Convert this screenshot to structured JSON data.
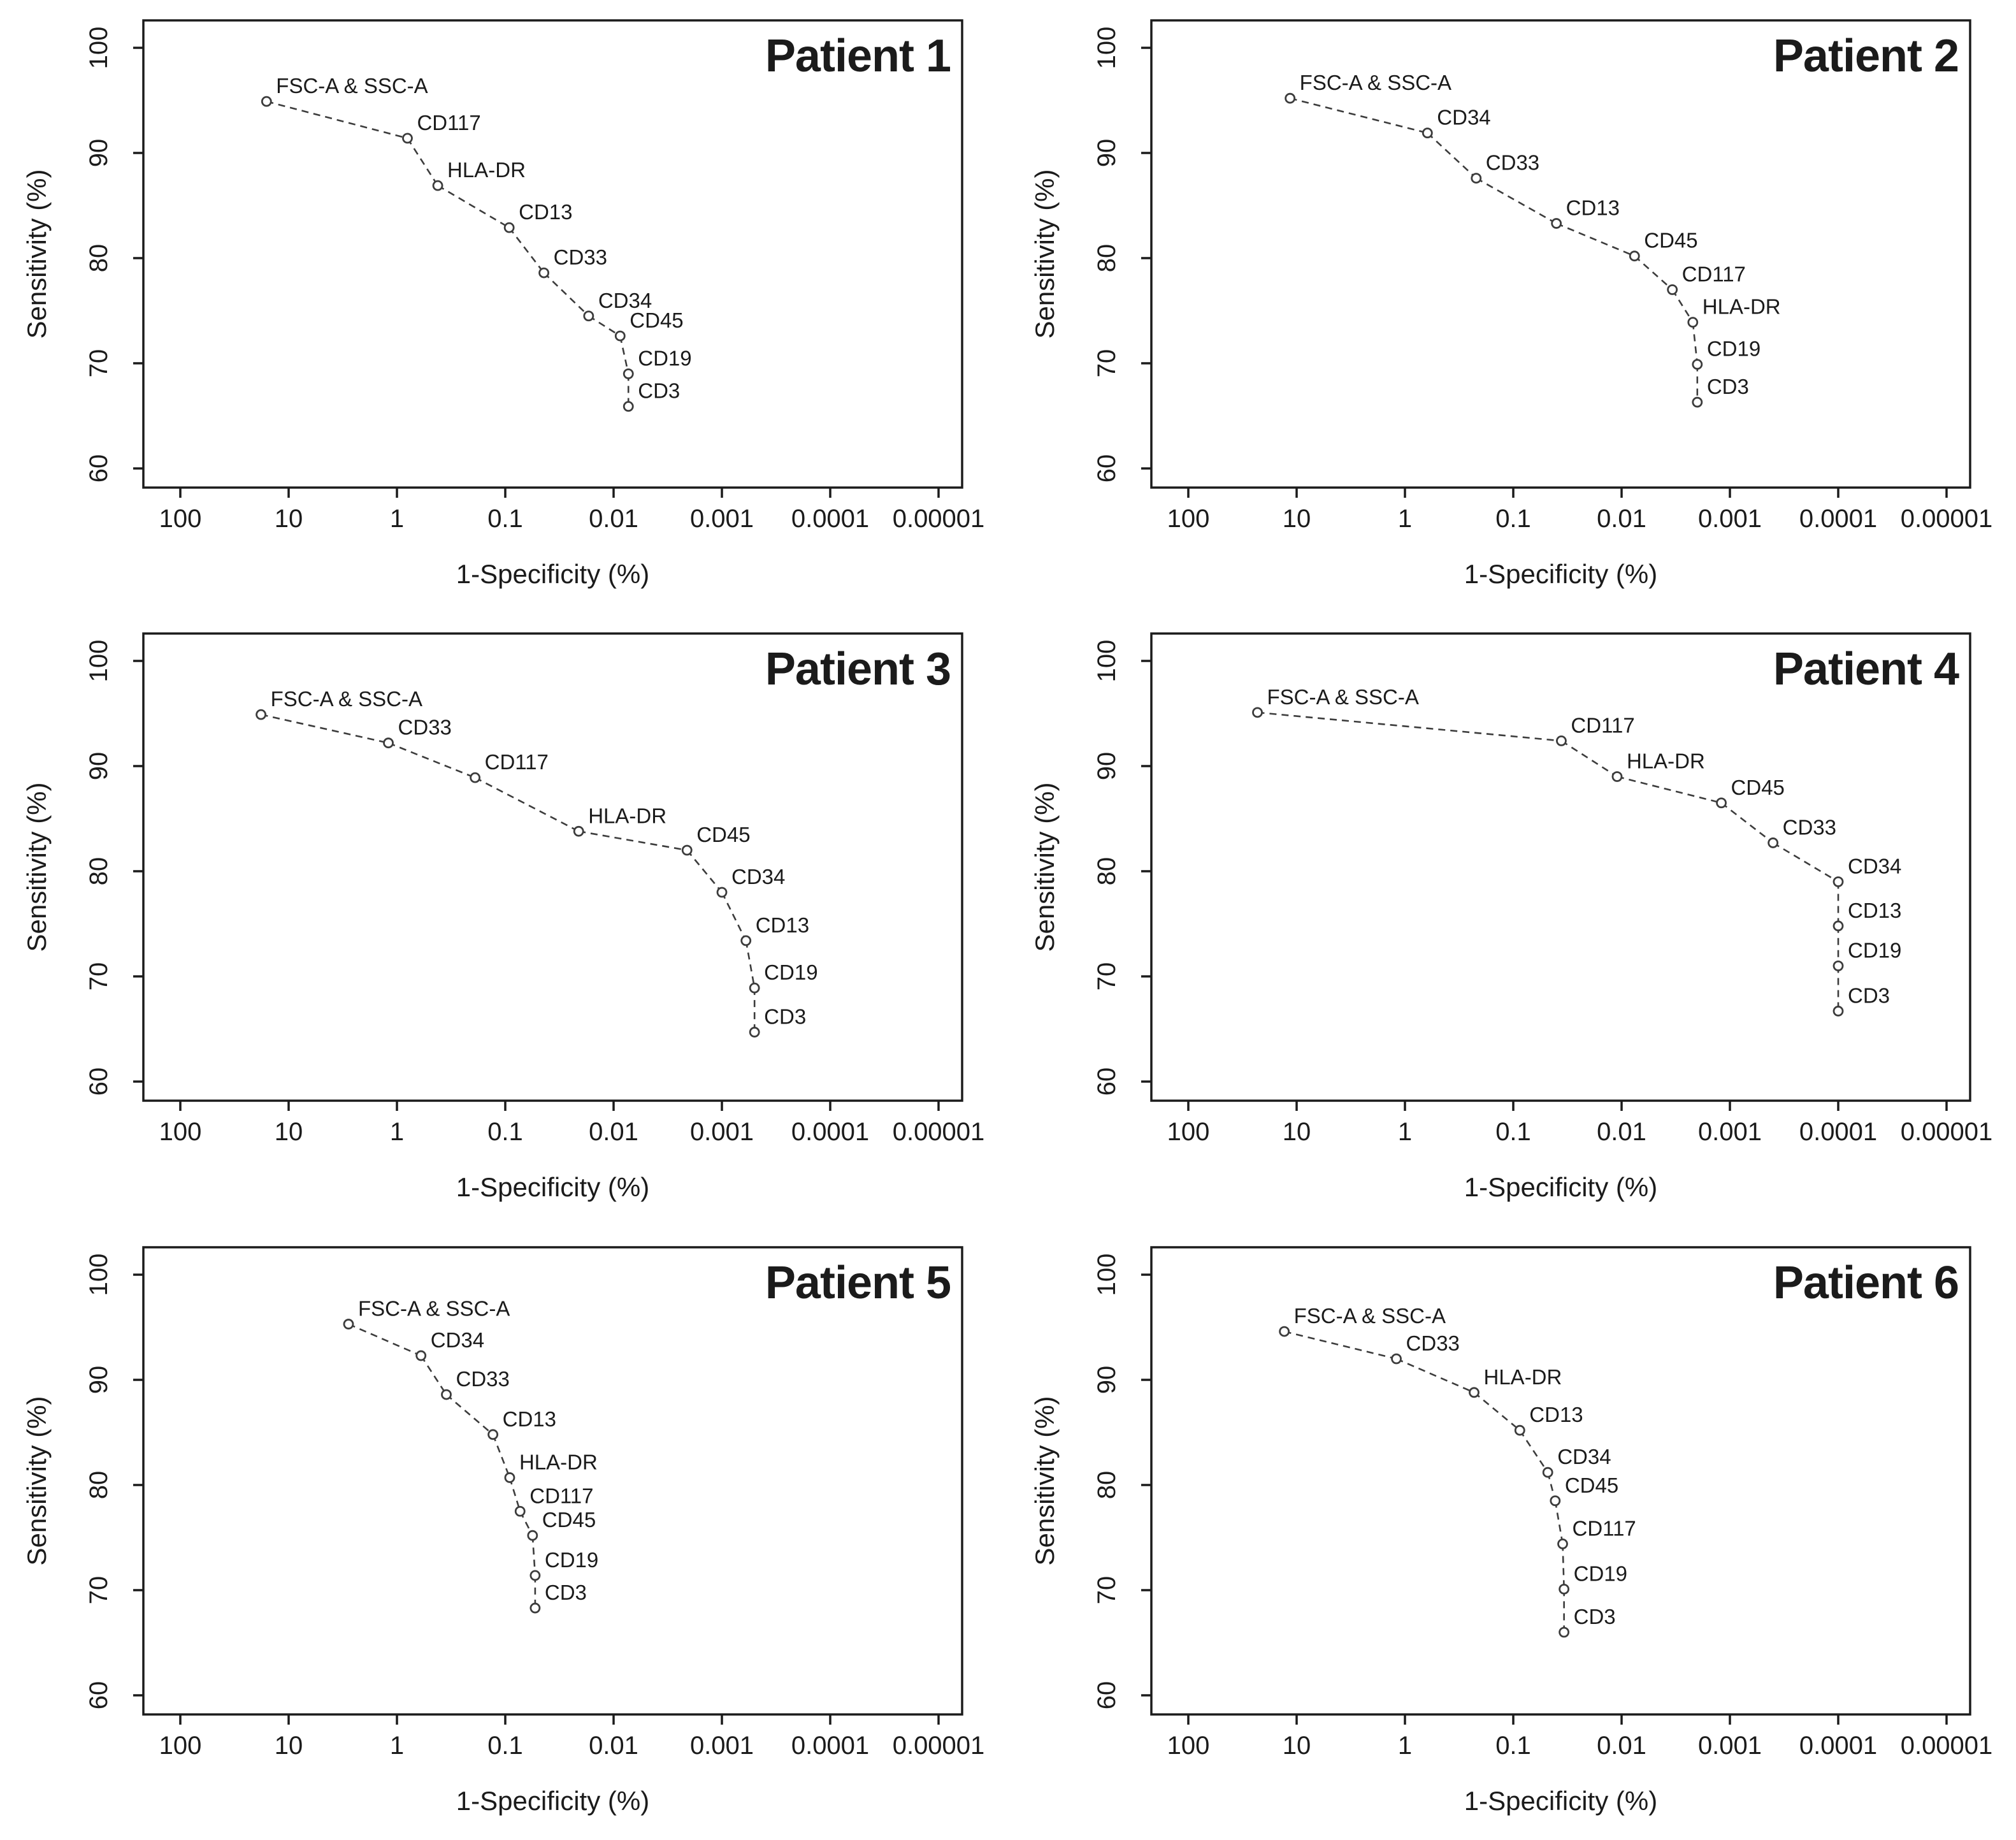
{
  "figure": {
    "description": "Six ROC-style marker ranking plots, one per patient",
    "xlabel": "1-Specificity (%)",
    "ylabel": "Sensitivity (%)",
    "x_tick_labels": [
      "100",
      "10",
      "1",
      "0.1",
      "0.01",
      "0.001",
      "0.0001",
      "0.00001"
    ],
    "y_tick_labels": [
      "100",
      "90",
      "80",
      "70",
      "60"
    ],
    "axis_color": "#1b1b1b",
    "line_color": "#3c3c3c",
    "marker": "open-circle"
  },
  "chart_data": [
    {
      "type": "line",
      "title": "Patient 1",
      "xlabel": "1-Specificity (%)",
      "ylabel": "Sensitivity (%)",
      "x_scale": "log10-reversed",
      "x_ticks": [
        100,
        10,
        1,
        0.1,
        0.01,
        0.001,
        0.0001,
        1e-05
      ],
      "y_ticks": [
        100,
        90,
        80,
        70,
        60
      ],
      "ylim": [
        58,
        102
      ],
      "grid": false,
      "legend": "none",
      "line_style": "dashed",
      "points": [
        {
          "label": "FSC-A & SSC-A",
          "x": 16,
          "y": 94.9
        },
        {
          "label": "CD117",
          "x": 0.8,
          "y": 91.4
        },
        {
          "label": "HLA-DR",
          "x": 0.42,
          "y": 86.9
        },
        {
          "label": "CD13",
          "x": 0.092,
          "y": 82.9
        },
        {
          "label": "CD33",
          "x": 0.044,
          "y": 78.6
        },
        {
          "label": "CD34",
          "x": 0.017,
          "y": 74.5
        },
        {
          "label": "CD45",
          "x": 0.0087,
          "y": 72.6
        },
        {
          "label": "CD19",
          "x": 0.0073,
          "y": 69.0
        },
        {
          "label": "CD3",
          "x": 0.0073,
          "y": 65.9
        }
      ]
    },
    {
      "type": "line",
      "title": "Patient 2",
      "xlabel": "1-Specificity (%)",
      "ylabel": "Sensitivity (%)",
      "x_scale": "log10-reversed",
      "x_ticks": [
        100,
        10,
        1,
        0.1,
        0.01,
        0.001,
        0.0001,
        1e-05
      ],
      "y_ticks": [
        100,
        90,
        80,
        70,
        60
      ],
      "ylim": [
        58,
        102
      ],
      "grid": false,
      "legend": "none",
      "line_style": "dashed",
      "points": [
        {
          "label": "FSC-A & SSC-A",
          "x": 11.5,
          "y": 95.2
        },
        {
          "label": "CD34",
          "x": 0.62,
          "y": 91.9
        },
        {
          "label": "CD33",
          "x": 0.22,
          "y": 87.6
        },
        {
          "label": "CD13",
          "x": 0.04,
          "y": 83.3
        },
        {
          "label": "CD45",
          "x": 0.0076,
          "y": 80.2
        },
        {
          "label": "CD117",
          "x": 0.0034,
          "y": 77.0
        },
        {
          "label": "HLA-DR",
          "x": 0.0022,
          "y": 73.9
        },
        {
          "label": "CD19",
          "x": 0.002,
          "y": 69.9
        },
        {
          "label": "CD3",
          "x": 0.002,
          "y": 66.3
        }
      ]
    },
    {
      "type": "line",
      "title": "Patient 3",
      "xlabel": "1-Specificity (%)",
      "ylabel": "Sensitivity (%)",
      "x_scale": "log10-reversed",
      "x_ticks": [
        100,
        10,
        1,
        0.1,
        0.01,
        0.001,
        0.0001,
        1e-05
      ],
      "y_ticks": [
        100,
        90,
        80,
        70,
        60
      ],
      "ylim": [
        58,
        102
      ],
      "grid": false,
      "legend": "none",
      "line_style": "dashed",
      "points": [
        {
          "label": "FSC-A & SSC-A",
          "x": 18,
          "y": 94.9
        },
        {
          "label": "CD33",
          "x": 1.2,
          "y": 92.2
        },
        {
          "label": "CD117",
          "x": 0.19,
          "y": 88.9
        },
        {
          "label": "HLA-DR",
          "x": 0.021,
          "y": 83.8
        },
        {
          "label": "CD45",
          "x": 0.0021,
          "y": 82.0
        },
        {
          "label": "CD34",
          "x": 0.001,
          "y": 78.0
        },
        {
          "label": "CD13",
          "x": 0.0006,
          "y": 73.4
        },
        {
          "label": "CD19",
          "x": 0.0005,
          "y": 68.9
        },
        {
          "label": "CD3",
          "x": 0.0005,
          "y": 64.7
        }
      ]
    },
    {
      "type": "line",
      "title": "Patient 4",
      "xlabel": "1-Specificity (%)",
      "ylabel": "Sensitivity (%)",
      "x_scale": "log10-reversed",
      "x_ticks": [
        100,
        10,
        1,
        0.1,
        0.01,
        0.001,
        0.0001,
        1e-05
      ],
      "y_ticks": [
        100,
        90,
        80,
        70,
        60
      ],
      "ylim": [
        58,
        102
      ],
      "grid": false,
      "legend": "none",
      "line_style": "dashed",
      "points": [
        {
          "label": "FSC-A & SSC-A",
          "x": 23,
          "y": 95.1
        },
        {
          "label": "CD117",
          "x": 0.036,
          "y": 92.4
        },
        {
          "label": "HLA-DR",
          "x": 0.011,
          "y": 89.0
        },
        {
          "label": "CD45",
          "x": 0.0012,
          "y": 86.5
        },
        {
          "label": "CD33",
          "x": 0.0004,
          "y": 82.7
        },
        {
          "label": "CD34",
          "x": 0.0001,
          "y": 79.0
        },
        {
          "label": "CD13",
          "x": 0.0001,
          "y": 74.8
        },
        {
          "label": "CD19",
          "x": 0.0001,
          "y": 71.0
        },
        {
          "label": "CD3",
          "x": 0.0001,
          "y": 66.7
        }
      ]
    },
    {
      "type": "line",
      "title": "Patient 5",
      "xlabel": "1-Specificity (%)",
      "ylabel": "Sensitivity (%)",
      "x_scale": "log10-reversed",
      "x_ticks": [
        100,
        10,
        1,
        0.1,
        0.01,
        0.001,
        0.0001,
        1e-05
      ],
      "y_ticks": [
        100,
        90,
        80,
        70,
        60
      ],
      "ylim": [
        58,
        102
      ],
      "grid": false,
      "legend": "none",
      "line_style": "dashed",
      "points": [
        {
          "label": "FSC-A & SSC-A",
          "x": 2.8,
          "y": 95.3
        },
        {
          "label": "CD34",
          "x": 0.6,
          "y": 92.3
        },
        {
          "label": "CD33",
          "x": 0.35,
          "y": 88.6
        },
        {
          "label": "CD13",
          "x": 0.13,
          "y": 84.8
        },
        {
          "label": "HLA-DR",
          "x": 0.091,
          "y": 80.7
        },
        {
          "label": "CD117",
          "x": 0.073,
          "y": 77.5
        },
        {
          "label": "CD45",
          "x": 0.056,
          "y": 75.2
        },
        {
          "label": "CD19",
          "x": 0.053,
          "y": 71.4
        },
        {
          "label": "CD3",
          "x": 0.053,
          "y": 68.3
        }
      ]
    },
    {
      "type": "line",
      "title": "Patient 6",
      "xlabel": "1-Specificity (%)",
      "ylabel": "Sensitivity (%)",
      "x_scale": "log10-reversed",
      "x_ticks": [
        100,
        10,
        1,
        0.1,
        0.01,
        0.001,
        0.0001,
        1e-05
      ],
      "y_ticks": [
        100,
        90,
        80,
        70,
        60
      ],
      "ylim": [
        58,
        102
      ],
      "grid": false,
      "legend": "none",
      "line_style": "dashed",
      "points": [
        {
          "label": "FSC-A & SSC-A",
          "x": 13,
          "y": 94.6
        },
        {
          "label": "CD33",
          "x": 1.2,
          "y": 92.0
        },
        {
          "label": "HLA-DR",
          "x": 0.23,
          "y": 88.8
        },
        {
          "label": "CD13",
          "x": 0.087,
          "y": 85.2
        },
        {
          "label": "CD34",
          "x": 0.048,
          "y": 81.2
        },
        {
          "label": "CD45",
          "x": 0.041,
          "y": 78.5
        },
        {
          "label": "CD117",
          "x": 0.035,
          "y": 74.4
        },
        {
          "label": "CD19",
          "x": 0.034,
          "y": 70.1
        },
        {
          "label": "CD3",
          "x": 0.034,
          "y": 66.0
        }
      ]
    }
  ]
}
